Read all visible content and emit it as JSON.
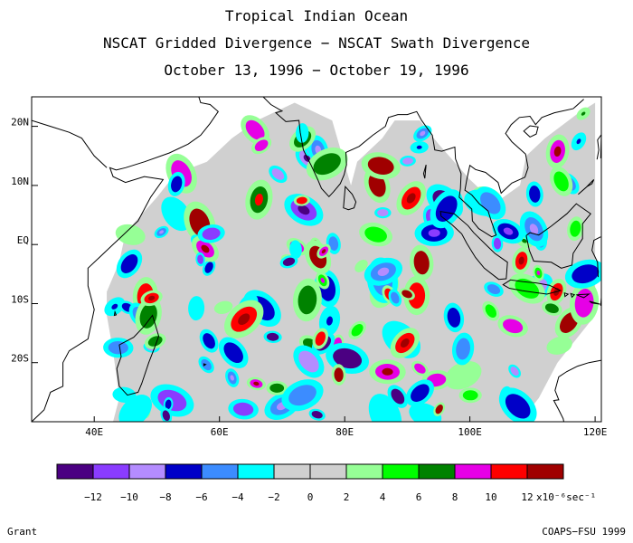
{
  "title": "Tropical Indian Ocean",
  "subtitle": "NSCAT Gridded Divergence − NSCAT Swath Divergence",
  "date_range": "October 13, 1996 − October 19, 1996",
  "credit_left": "Grant",
  "credit_right": "COAPS−FSU 1999",
  "map": {
    "lon_range": [
      30,
      121
    ],
    "lat_range": [
      -30,
      25
    ],
    "lat_ticks": [
      "20N",
      "10N",
      "EQ",
      "10S",
      "20S"
    ],
    "lon_ticks": [
      "40E",
      "60E",
      "80E",
      "100E",
      "120E"
    ]
  },
  "colorbar": {
    "colors": [
      "#4b0082",
      "#8a3cff",
      "#b48cff",
      "#0000c8",
      "#3c8cff",
      "#00ffff",
      "#d0d0d0",
      "#d0d0d0",
      "#96ff96",
      "#00ff00",
      "#008200",
      "#e600e6",
      "#ff0000",
      "#a00000"
    ],
    "tick_labels": [
      "−12",
      "−10",
      "−8",
      "−6",
      "−4",
      "−2",
      "0",
      "2",
      "4",
      "6",
      "8",
      "10",
      "12"
    ],
    "units": "x10⁻⁶sec⁻¹"
  }
}
